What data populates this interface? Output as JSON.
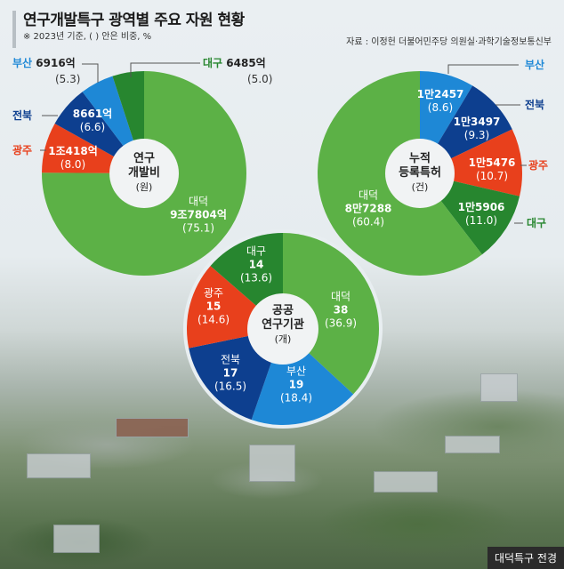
{
  "title": "연구개발특구 광역별 주요 자원 현황",
  "note": "※ 2023년 기준, (   ) 안은 비중, %",
  "source": "자료 : 이정헌 더불어민주당 의원실·과학기술정보통신부",
  "caption": "대덕특구 전경",
  "colors": {
    "대덕": "#5cb146",
    "대구": "#27862f",
    "부산": "#1e88d6",
    "전북": "#0d3f8f",
    "광주": "#e8401c"
  },
  "chart_data": [
    {
      "type": "pie",
      "title": "연구 개발비",
      "unit": "(원)",
      "slices": [
        {
          "region": "대덕",
          "value": "9조7804억",
          "pct": 75.1,
          "pct_label": "(75.1)"
        },
        {
          "region": "광주",
          "value": "1조418억",
          "pct": 8.0,
          "pct_label": "(8.0)"
        },
        {
          "region": "전북",
          "value": "8661억",
          "pct": 6.6,
          "pct_label": "(6.6)"
        },
        {
          "region": "부산",
          "value": "6916억",
          "pct": 5.3,
          "pct_label": "(5.3)"
        },
        {
          "region": "대구",
          "value": "6485억",
          "pct": 5.0,
          "pct_label": "(5.0)"
        }
      ]
    },
    {
      "type": "pie",
      "title": "누적 등록특허",
      "unit": "(건)",
      "slices": [
        {
          "region": "부산",
          "value": "1만2457",
          "pct": 8.6,
          "pct_label": "(8.6)"
        },
        {
          "region": "전북",
          "value": "1만3497",
          "pct": 9.3,
          "pct_label": "(9.3)"
        },
        {
          "region": "광주",
          "value": "1만5476",
          "pct": 10.7,
          "pct_label": "(10.7)"
        },
        {
          "region": "대구",
          "value": "1만5906",
          "pct": 11.0,
          "pct_label": "(11.0)"
        },
        {
          "region": "대덕",
          "value": "8만7288",
          "pct": 60.4,
          "pct_label": "(60.4)"
        }
      ]
    },
    {
      "type": "pie",
      "title": "공공 연구기관",
      "unit": "(개)",
      "slices": [
        {
          "region": "대덕",
          "value": "38",
          "pct": 36.9,
          "pct_label": "(36.9)"
        },
        {
          "region": "부산",
          "value": "19",
          "pct": 18.4,
          "pct_label": "(18.4)"
        },
        {
          "region": "전북",
          "value": "17",
          "pct": 16.5,
          "pct_label": "(16.5)"
        },
        {
          "region": "광주",
          "value": "15",
          "pct": 14.6,
          "pct_label": "(14.6)"
        },
        {
          "region": "대구",
          "value": "14",
          "pct": 13.6,
          "pct_label": "(13.6)"
        }
      ]
    }
  ],
  "center_titles": [
    {
      "line1": "연구",
      "line2": "개발비"
    },
    {
      "line1": "누적",
      "line2": "등록특허"
    },
    {
      "line1": "공공",
      "line2": "연구기관"
    }
  ]
}
